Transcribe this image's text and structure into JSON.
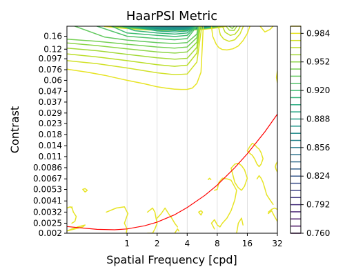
{
  "chart_data": {
    "type": "contour",
    "title": "HaarPSI Metric",
    "xlabel": "Spatial Frequency [cpd]",
    "ylabel": "Contrast",
    "x_scale": "log2",
    "y_scale": "log",
    "xlim": [
      0.25,
      32
    ],
    "ylim": [
      0.002,
      0.2
    ],
    "x_ticks": [
      {
        "value": 1,
        "label": "1"
      },
      {
        "value": 2,
        "label": "2"
      },
      {
        "value": 4,
        "label": "4"
      },
      {
        "value": 8,
        "label": "8"
      },
      {
        "value": 16,
        "label": "16"
      },
      {
        "value": 32,
        "label": "32"
      }
    ],
    "y_ticks": [
      {
        "value": 0.002,
        "label": "0.002"
      },
      {
        "value": 0.0025,
        "label": "0.0025"
      },
      {
        "value": 0.0032,
        "label": "0.0032"
      },
      {
        "value": 0.0041,
        "label": "0.0041"
      },
      {
        "value": 0.0053,
        "label": "0.0053"
      },
      {
        "value": 0.0067,
        "label": "0.0067"
      },
      {
        "value": 0.0086,
        "label": "0.0086"
      },
      {
        "value": 0.011,
        "label": "0.011"
      },
      {
        "value": 0.014,
        "label": "0.014"
      },
      {
        "value": 0.018,
        "label": "0.018"
      },
      {
        "value": 0.023,
        "label": "0.023"
      },
      {
        "value": 0.029,
        "label": "0.029"
      },
      {
        "value": 0.037,
        "label": "0.037"
      },
      {
        "value": 0.047,
        "label": "0.047"
      },
      {
        "value": 0.06,
        "label": "0.06"
      },
      {
        "value": 0.076,
        "label": "0.076"
      },
      {
        "value": 0.097,
        "label": "0.097"
      },
      {
        "value": 0.12,
        "label": "0.12"
      },
      {
        "value": 0.16,
        "label": "0.16"
      }
    ],
    "colorbar": {
      "colormap": "viridis",
      "min": 0.76,
      "max": 0.992,
      "level_step": 0.008,
      "tick_labels": [
        "0.760",
        "0.792",
        "0.824",
        "0.856",
        "0.888",
        "0.920",
        "0.952",
        "0.984"
      ],
      "tick_values": [
        0.76,
        0.792,
        0.824,
        0.856,
        0.888,
        0.92,
        0.952,
        0.984
      ]
    },
    "grid": "vertical lines at x ticks",
    "colors": {
      "threshold_curve": "#ff0000",
      "contour_low": "#440154",
      "contour_mid": "#21918c",
      "contour_high": "#dde318"
    },
    "threshold_curve": {
      "x": [
        0.25,
        0.5,
        0.75,
        1,
        1.5,
        2,
        3,
        4,
        6,
        8,
        12,
        16,
        24,
        32
      ],
      "y": [
        0.00232,
        0.00218,
        0.00216,
        0.0022,
        0.00236,
        0.00256,
        0.00302,
        0.00354,
        0.00464,
        0.00584,
        0.0086,
        0.0117,
        0.0191,
        0.0283
      ]
    },
    "top_contours": [
      {
        "level": 0.984,
        "x": [
          0.25,
          0.4,
          0.6,
          0.8,
          1,
          1.5,
          2,
          2.5,
          3,
          3.5,
          4,
          4.5,
          5,
          5.5,
          5.8
        ],
        "y": [
          0.077,
          0.072,
          0.067,
          0.063,
          0.06,
          0.0555,
          0.052,
          0.0503,
          0.0493,
          0.049,
          0.0491,
          0.0505,
          0.056,
          0.072,
          0.2
        ]
      },
      {
        "level": 0.976,
        "x": [
          0.25,
          0.5,
          1,
          2,
          3,
          4,
          5,
          5.6
        ],
        "y": [
          0.093,
          0.087,
          0.079,
          0.071,
          0.068,
          0.069,
          0.09,
          0.2
        ]
      },
      {
        "level": 0.968,
        "x": [
          0.25,
          0.5,
          1,
          2,
          3,
          4,
          5,
          5.4
        ],
        "y": [
          0.108,
          0.101,
          0.093,
          0.085,
          0.082,
          0.084,
          0.11,
          0.2
        ]
      },
      {
        "level": 0.96,
        "x": [
          0.25,
          0.5,
          1,
          2,
          3,
          4,
          5,
          5.3
        ],
        "y": [
          0.123,
          0.116,
          0.107,
          0.099,
          0.096,
          0.098,
          0.125,
          0.2
        ]
      },
      {
        "level": 0.952,
        "x": [
          0.25,
          0.5,
          1,
          2,
          3,
          4,
          5,
          5.25
        ],
        "y": [
          0.138,
          0.13,
          0.121,
          0.113,
          0.11,
          0.113,
          0.14,
          0.2
        ]
      },
      {
        "level": 0.944,
        "x": [
          0.25,
          0.5,
          1,
          2,
          3,
          4,
          5,
          5.2
        ],
        "y": [
          0.15,
          0.143,
          0.134,
          0.126,
          0.123,
          0.126,
          0.155,
          0.2
        ]
      },
      {
        "level": 0.936,
        "x": [
          0.3,
          0.6,
          1,
          2,
          3,
          4,
          5,
          5.15
        ],
        "y": [
          0.2,
          0.157,
          0.147,
          0.139,
          0.136,
          0.139,
          0.168,
          0.2
        ]
      },
      {
        "level": 0.928,
        "x": [
          0.5,
          1,
          2,
          3,
          4,
          5
        ],
        "y": [
          0.2,
          0.16,
          0.152,
          0.148,
          0.152,
          0.2
        ]
      },
      {
        "level": 0.92,
        "x": [
          0.7,
          1,
          2,
          3,
          4,
          4.9
        ],
        "y": [
          0.2,
          0.172,
          0.163,
          0.159,
          0.163,
          0.2
        ]
      },
      {
        "level": 0.912,
        "x": [
          0.9,
          1.2,
          2,
          3,
          4,
          4.8
        ],
        "y": [
          0.2,
          0.181,
          0.172,
          0.168,
          0.172,
          0.2
        ]
      },
      {
        "level": 0.904,
        "x": [
          1.1,
          2,
          3,
          4,
          4.7
        ],
        "y": [
          0.2,
          0.18,
          0.176,
          0.18,
          0.2
        ]
      },
      {
        "level": 0.896,
        "x": [
          1.3,
          2,
          3,
          4,
          4.6
        ],
        "y": [
          0.2,
          0.186,
          0.182,
          0.186,
          0.2
        ]
      },
      {
        "level": 0.888,
        "x": [
          1.5,
          2.2,
          3,
          4,
          4.5
        ],
        "y": [
          0.2,
          0.19,
          0.187,
          0.19,
          0.2
        ]
      },
      {
        "level": 0.88,
        "x": [
          1.7,
          2.4,
          3,
          4,
          4.4
        ],
        "y": [
          0.2,
          0.193,
          0.191,
          0.193,
          0.2
        ]
      },
      {
        "level": 0.872,
        "x": [
          1.9,
          2.6,
          3.2,
          3.9,
          4.3
        ],
        "y": [
          0.2,
          0.196,
          0.194,
          0.196,
          0.2
        ]
      },
      {
        "level": 0.864,
        "x": [
          2.1,
          2.8,
          3.3,
          3.8,
          4.2
        ],
        "y": [
          0.2,
          0.198,
          0.197,
          0.198,
          0.2
        ]
      }
    ],
    "right_top_contours": [
      {
        "level": 0.984,
        "x": [
          7,
          7.2,
          7.8,
          8.3,
          9,
          10,
          11.5,
          13,
          14.5,
          16,
          17
        ],
        "y": [
          0.2,
          0.16,
          0.134,
          0.124,
          0.119,
          0.118,
          0.121,
          0.129,
          0.145,
          0.17,
          0.2
        ]
      },
      {
        "level": 0.976,
        "x": [
          8.2,
          8.6,
          9.3,
          10.5,
          12,
          13.5,
          14.6
        ],
        "y": [
          0.2,
          0.165,
          0.15,
          0.143,
          0.148,
          0.168,
          0.2
        ]
      },
      {
        "level": 0.968,
        "x": [
          9,
          9.6,
          10.8,
          12,
          13,
          13.6
        ],
        "y": [
          0.2,
          0.175,
          0.163,
          0.167,
          0.183,
          0.2
        ]
      },
      {
        "level": 0.96,
        "x": [
          9.8,
          10.6,
          11.8,
          12.6
        ],
        "y": [
          0.2,
          0.183,
          0.182,
          0.2
        ]
      },
      {
        "level": 0.952,
        "x": [
          10.5,
          11.3,
          11.9
        ],
        "y": [
          0.2,
          0.19,
          0.2
        ]
      },
      {
        "level": 0.984,
        "x": [
          21.5,
          24,
          27,
          29
        ],
        "y": [
          0.2,
          0.176,
          0.186,
          0.2
        ]
      },
      {
        "level": 0.984,
        "x": [
          32,
          31.3,
          32
        ],
        "y": [
          0.074,
          0.064,
          0.057
        ]
      }
    ],
    "noise_contours": [
      {
        "level": 0.984,
        "x": [
          0.25,
          0.28,
          0.32,
          0.38,
          0.36,
          0.3,
          0.25
        ],
        "y": [
          0.0021,
          0.0022,
          0.0023,
          0.0024,
          0.0023,
          0.0022,
          0.0021
        ]
      },
      {
        "level": 0.984,
        "x": [
          0.28,
          0.29,
          0.31,
          0.3,
          0.28
        ],
        "y": [
          0.0036,
          0.0032,
          0.0029,
          0.0026,
          0.0025
        ]
      },
      {
        "level": 0.984,
        "x": [
          0.25,
          0.27,
          0.28
        ],
        "y": [
          0.0035,
          0.0036,
          0.0035
        ]
      },
      {
        "level": 0.984,
        "x": [
          0.62,
          0.78,
          0.94,
          1.02,
          0.98,
          0.94,
          1.0,
          0.98
        ],
        "y": [
          0.0032,
          0.0035,
          0.0036,
          0.0031,
          0.0028,
          0.0025,
          0.0022,
          0.002
        ]
      },
      {
        "level": 0.984,
        "x": [
          0.36,
          0.38,
          0.4,
          0.38,
          0.36
        ],
        "y": [
          0.0053,
          0.0054,
          0.0052,
          0.005,
          0.0053
        ]
      },
      {
        "level": 0.984,
        "x": [
          1.6,
          1.8,
          1.9,
          1.95,
          2.0,
          1.9,
          1.8,
          1.6
        ],
        "y": [
          0.0032,
          0.0035,
          0.0032,
          0.0028,
          0.0025,
          0.0022,
          0.002,
          0.002
        ]
      },
      {
        "level": 0.984,
        "x": [
          2.0,
          2.2,
          2.4,
          2.6,
          2.8,
          3.0,
          3.2
        ],
        "y": [
          0.0028,
          0.0031,
          0.0035,
          0.0031,
          0.0028,
          0.0025,
          0.0023
        ]
      },
      {
        "level": 0.984,
        "x": [
          3.0,
          3.1,
          3.2,
          3.3
        ],
        "y": [
          0.002,
          0.0021,
          0.0022,
          0.0021
        ]
      },
      {
        "level": 0.984,
        "x": [
          5.2,
          5.5,
          5.7,
          5.5,
          5.2
        ],
        "y": [
          0.0032,
          0.0033,
          0.0032,
          0.003,
          0.0032
        ]
      },
      {
        "level": 0.984,
        "x": [
          6.5,
          6.7,
          6.9
        ],
        "y": [
          0.0066,
          0.0068,
          0.0066
        ]
      },
      {
        "level": 0.984,
        "x": [
          7.5,
          8.0,
          8.3,
          9.0,
          10.0,
          11.0,
          12.5,
          12.0,
          11.0,
          10.0,
          9.0,
          8.5,
          8.0,
          7.5,
          7.0,
          7.5
        ],
        "y": [
          0.0052,
          0.0053,
          0.0062,
          0.0068,
          0.0067,
          0.0065,
          0.0052,
          0.0042,
          0.0033,
          0.0028,
          0.0025,
          0.0023,
          0.0024,
          0.0027,
          0.0025,
          0.0022
        ]
      },
      {
        "level": 0.984,
        "x": [
          11.0,
          12.0,
          13.0,
          14.0,
          15.0,
          16.0,
          15.0,
          14.0,
          13.0,
          12.0,
          11.0
        ],
        "y": [
          0.0085,
          0.0093,
          0.0095,
          0.009,
          0.0082,
          0.0068,
          0.0057,
          0.0052,
          0.0055,
          0.0062,
          0.0085
        ]
      },
      {
        "level": 0.984,
        "x": [
          12.5,
          13.0,
          14.0,
          14.5
        ],
        "y": [
          0.002,
          0.0025,
          0.0028,
          0.0024
        ]
      },
      {
        "level": 0.984,
        "x": [
          16.0,
          17.0,
          18.0,
          19.0,
          20.0,
          21.0,
          22.0,
          23.0,
          22.0,
          21.0,
          20.0,
          19.0,
          18.0,
          17.0,
          16.0
        ],
        "y": [
          0.0125,
          0.0138,
          0.0148,
          0.0143,
          0.0135,
          0.013,
          0.012,
          0.0105,
          0.0093,
          0.0088,
          0.0093,
          0.0104,
          0.0113,
          0.0118,
          0.0125
        ]
      },
      {
        "level": 0.984,
        "x": [
          20.0,
          21.0,
          22.0,
          23.0,
          24.0,
          25.0,
          27.0,
          29.0
        ],
        "y": [
          0.0067,
          0.0072,
          0.0068,
          0.0062,
          0.0054,
          0.0047,
          0.0042,
          0.0038
        ]
      },
      {
        "level": 0.984,
        "x": [
          26.0,
          28.0,
          30.0,
          32.0
        ],
        "y": [
          0.0031,
          0.0033,
          0.0029,
          0.0026
        ]
      },
      {
        "level": 0.984,
        "x": [
          32.0,
          31.0,
          30.5,
          31.0,
          32.0
        ],
        "y": [
          0.0098,
          0.0093,
          0.0088,
          0.0083,
          0.0078
        ]
      },
      {
        "level": 0.984,
        "x": [
          32.0,
          30.0,
          28.0,
          26.0
        ],
        "y": [
          0.0034,
          0.0035,
          0.0034,
          0.0032
        ]
      }
    ]
  }
}
